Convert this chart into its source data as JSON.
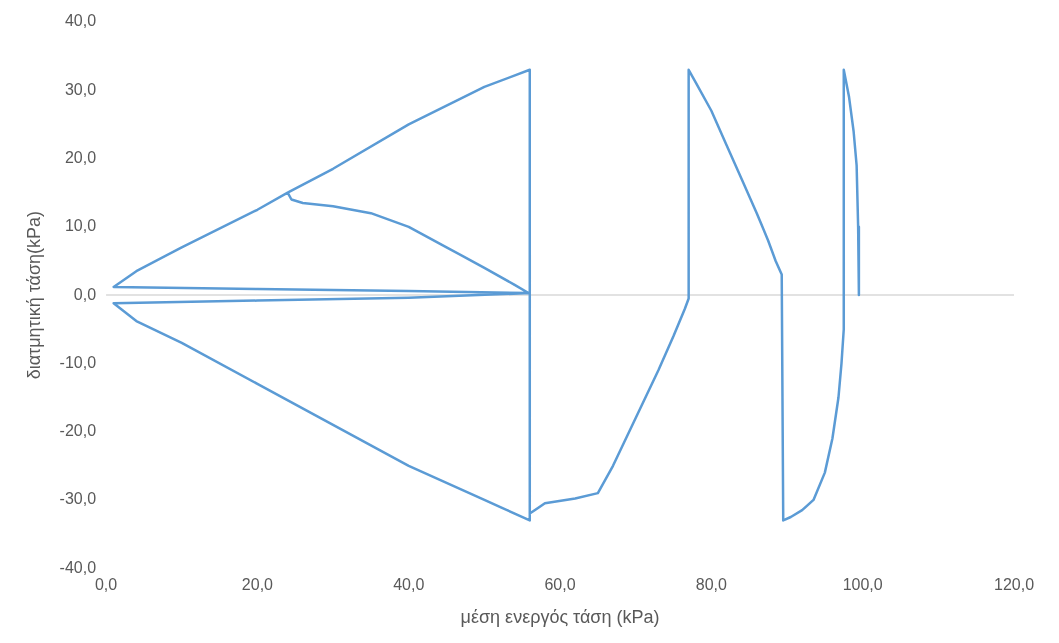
{
  "chart_data": {
    "type": "line",
    "xlabel": "μέση ενεργός τάση (kPa)",
    "ylabel": "διατμητική τάση(kPa)",
    "marker": "none",
    "grid": false,
    "xlim": [
      0,
      120
    ],
    "ylim": [
      -40,
      40
    ],
    "xticks": [
      {
        "value": 0,
        "label": "0,0"
      },
      {
        "value": 20,
        "label": "20,0"
      },
      {
        "value": 40,
        "label": "40,0"
      },
      {
        "value": 60,
        "label": "60,0"
      },
      {
        "value": 80,
        "label": "80,0"
      },
      {
        "value": 100,
        "label": "100,0"
      },
      {
        "value": 120,
        "label": "120,0"
      }
    ],
    "yticks": [
      {
        "value": -40,
        "label": "-40,0"
      },
      {
        "value": -30,
        "label": "-30,0"
      },
      {
        "value": -20,
        "label": "-20,0"
      },
      {
        "value": -10,
        "label": "-10,0"
      },
      {
        "value": 0,
        "label": "0,0"
      },
      {
        "value": 10,
        "label": "10,0"
      },
      {
        "value": 20,
        "label": "20,0"
      },
      {
        "value": 30,
        "label": "30,0"
      },
      {
        "value": 40,
        "label": "40,0"
      }
    ],
    "ref_lines": [
      {
        "axis": "y",
        "value": 0,
        "color": "#d9d9d9"
      }
    ],
    "series": [
      {
        "color": "#5b9bd5",
        "x": [
          56,
          54,
          50,
          45,
          40,
          35,
          30,
          26,
          24.5,
          24,
          20,
          10,
          4,
          1,
          20,
          40,
          56,
          40,
          20,
          1,
          4,
          10,
          20,
          30,
          40,
          50,
          56,
          56,
          50,
          40,
          30,
          24,
          30,
          40,
          50,
          56,
          56,
          58,
          62,
          65,
          67,
          70,
          73,
          75,
          76.5,
          77,
          77,
          78,
          80,
          82,
          84,
          86,
          87.5,
          88.5,
          89.3,
          89.5,
          90.5,
          92,
          93.5,
          95,
          96,
          96.8,
          97.2,
          97.5,
          97.5,
          98.2,
          98.8,
          99.2,
          99.4,
          99.5
        ],
        "values": [
          0.2,
          1.5,
          4,
          7,
          10,
          12,
          13,
          13.5,
          14,
          15,
          12.5,
          7,
          3.5,
          1.2,
          0.9,
          0.6,
          0.3,
          -0.4,
          -0.8,
          -1.2,
          -3.8,
          -7,
          -13,
          -19,
          -25,
          -30,
          -33,
          33,
          30.5,
          25,
          18.5,
          15,
          18.5,
          25,
          30.5,
          33,
          -32,
          -30.5,
          -29.8,
          -29,
          -25,
          -18,
          -11,
          -6,
          -2,
          -0.5,
          33,
          31,
          27,
          22,
          17,
          12,
          8,
          5,
          3,
          -33,
          -32.5,
          -31.5,
          -30,
          -26,
          -21,
          -15,
          -10,
          -5,
          33,
          29,
          24,
          19,
          10,
          0
        ]
      }
    ]
  }
}
